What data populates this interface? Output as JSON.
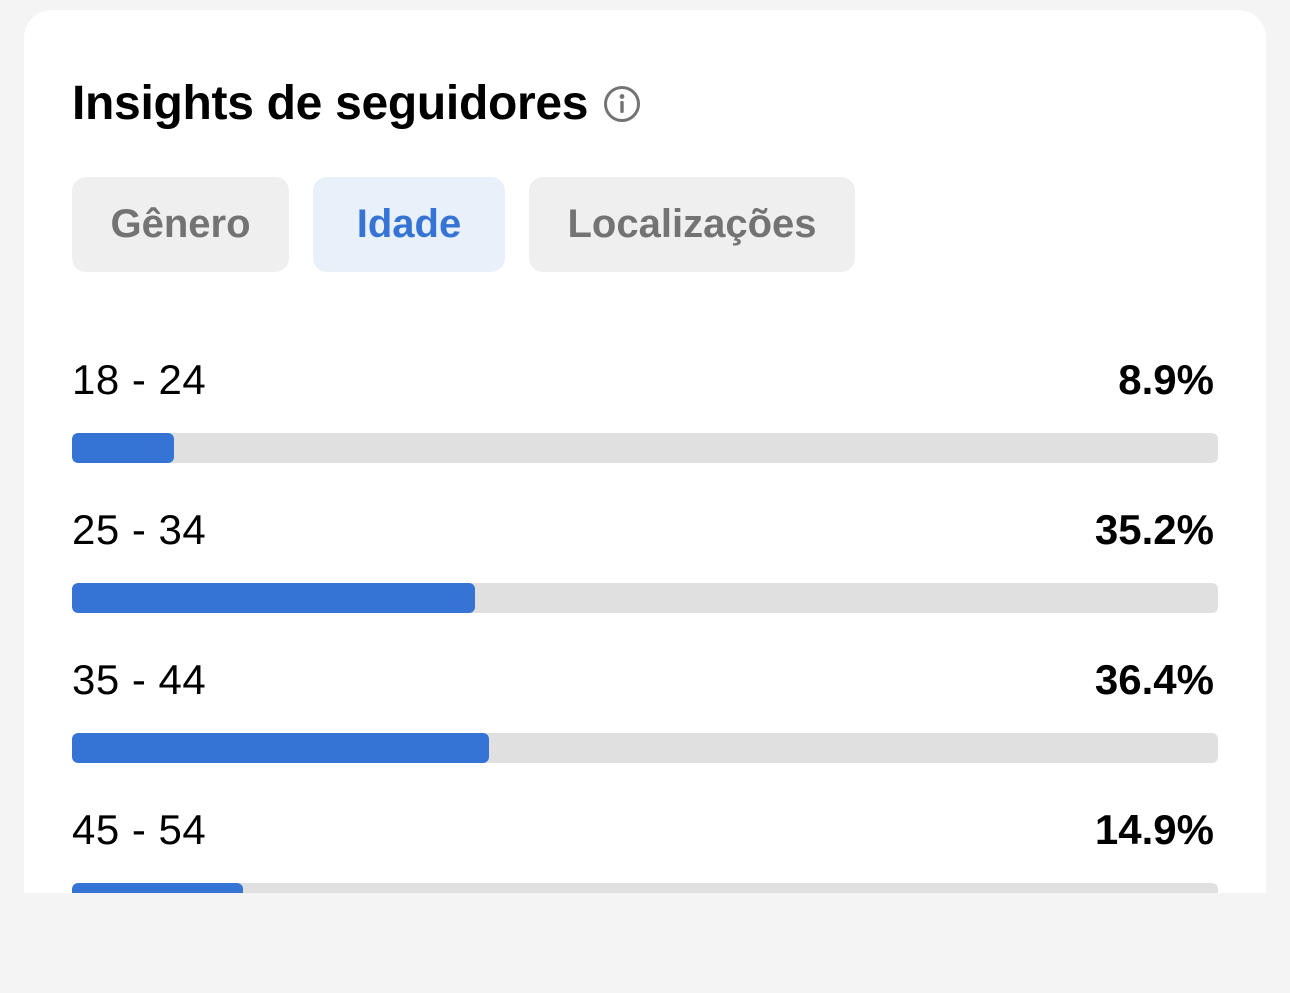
{
  "header": {
    "title": "Insights de seguidores",
    "info_icon": "info-circle-icon"
  },
  "tabs": [
    {
      "label": "Gênero",
      "active": false
    },
    {
      "label": "Idade",
      "active": true
    },
    {
      "label": "Localizações",
      "active": false
    }
  ],
  "age_breakdown": [
    {
      "label": "18 - 24",
      "value": "8.9%",
      "bar_fraction": 0.089
    },
    {
      "label": "25 - 34",
      "value": "35.2%",
      "bar_fraction": 0.352
    },
    {
      "label": "35 - 44",
      "value": "36.4%",
      "bar_fraction": 0.364
    },
    {
      "label": "45 - 54",
      "value": "14.9%",
      "bar_fraction": 0.149
    }
  ],
  "colors": {
    "accent": "#3574d4",
    "active_tab_bg": "#e8f0fa",
    "inactive_tab_bg": "#efefef",
    "inactive_tab_text": "#737373",
    "track": "#e0e0e0",
    "page_bg": "#f4f4f4"
  }
}
